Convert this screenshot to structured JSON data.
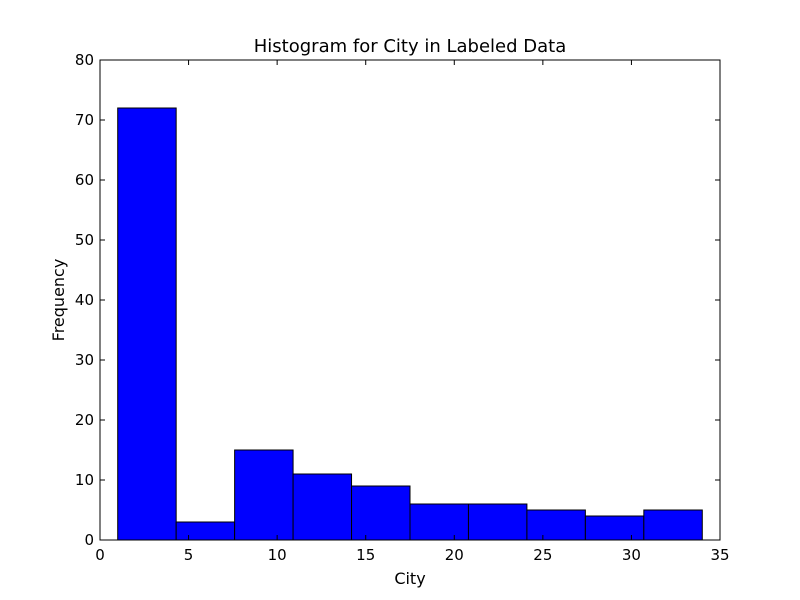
{
  "chart_data": {
    "type": "bar",
    "title": "Histogram for City in Labeled Data",
    "xlabel": "City",
    "ylabel": "Frequency",
    "xlim": [
      0,
      35
    ],
    "ylim": [
      0,
      80
    ],
    "xticks": [
      0,
      5,
      10,
      15,
      20,
      25,
      30,
      35
    ],
    "yticks": [
      0,
      10,
      20,
      30,
      40,
      50,
      60,
      70,
      80
    ],
    "bins": [
      {
        "start": 1.0,
        "end": 4.3,
        "value": 72
      },
      {
        "start": 4.3,
        "end": 7.6,
        "value": 3
      },
      {
        "start": 7.6,
        "end": 10.9,
        "value": 15
      },
      {
        "start": 10.9,
        "end": 14.2,
        "value": 11
      },
      {
        "start": 14.2,
        "end": 17.5,
        "value": 9
      },
      {
        "start": 17.5,
        "end": 20.8,
        "value": 6
      },
      {
        "start": 20.8,
        "end": 24.1,
        "value": 6
      },
      {
        "start": 24.1,
        "end": 27.4,
        "value": 5
      },
      {
        "start": 27.4,
        "end": 30.7,
        "value": 4
      },
      {
        "start": 30.7,
        "end": 34.0,
        "value": 5
      }
    ],
    "bar_color": "#0000ff",
    "edge_color": "#000000",
    "grid": false
  }
}
